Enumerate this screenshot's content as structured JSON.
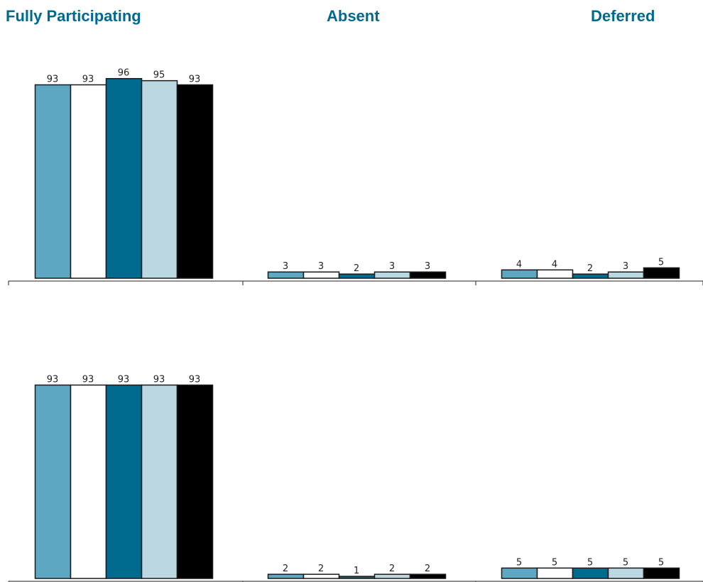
{
  "groups": [
    "Fully Participating",
    "Absent",
    "Deferred"
  ],
  "chart_data": [
    {
      "type": "bar",
      "categories": [
        "Fully Participating",
        "Absent",
        "Deferred"
      ],
      "series": [
        {
          "values": [
            93,
            3,
            4
          ],
          "color": "#5ea7c2"
        },
        {
          "values": [
            93,
            3,
            4
          ],
          "color": "#ffffff"
        },
        {
          "values": [
            96,
            2,
            2
          ],
          "color": "#006a8e"
        },
        {
          "values": [
            95,
            3,
            3
          ],
          "color": "#bad7e2"
        },
        {
          "values": [
            93,
            3,
            5
          ],
          "color": "#000000"
        }
      ],
      "ylim": [
        0,
        100
      ]
    },
    {
      "type": "bar",
      "categories": [
        "Fully Participating",
        "Absent",
        "Deferred"
      ],
      "series": [
        {
          "values": [
            93,
            2,
            5
          ],
          "color": "#5ea7c2"
        },
        {
          "values": [
            93,
            2,
            5
          ],
          "color": "#ffffff"
        },
        {
          "values": [
            93,
            1,
            5
          ],
          "color": "#006a8e"
        },
        {
          "values": [
            93,
            2,
            5
          ],
          "color": "#bad7e2"
        },
        {
          "values": [
            93,
            2,
            5
          ],
          "color": "#000000"
        }
      ],
      "ylim": [
        0,
        100
      ]
    }
  ]
}
